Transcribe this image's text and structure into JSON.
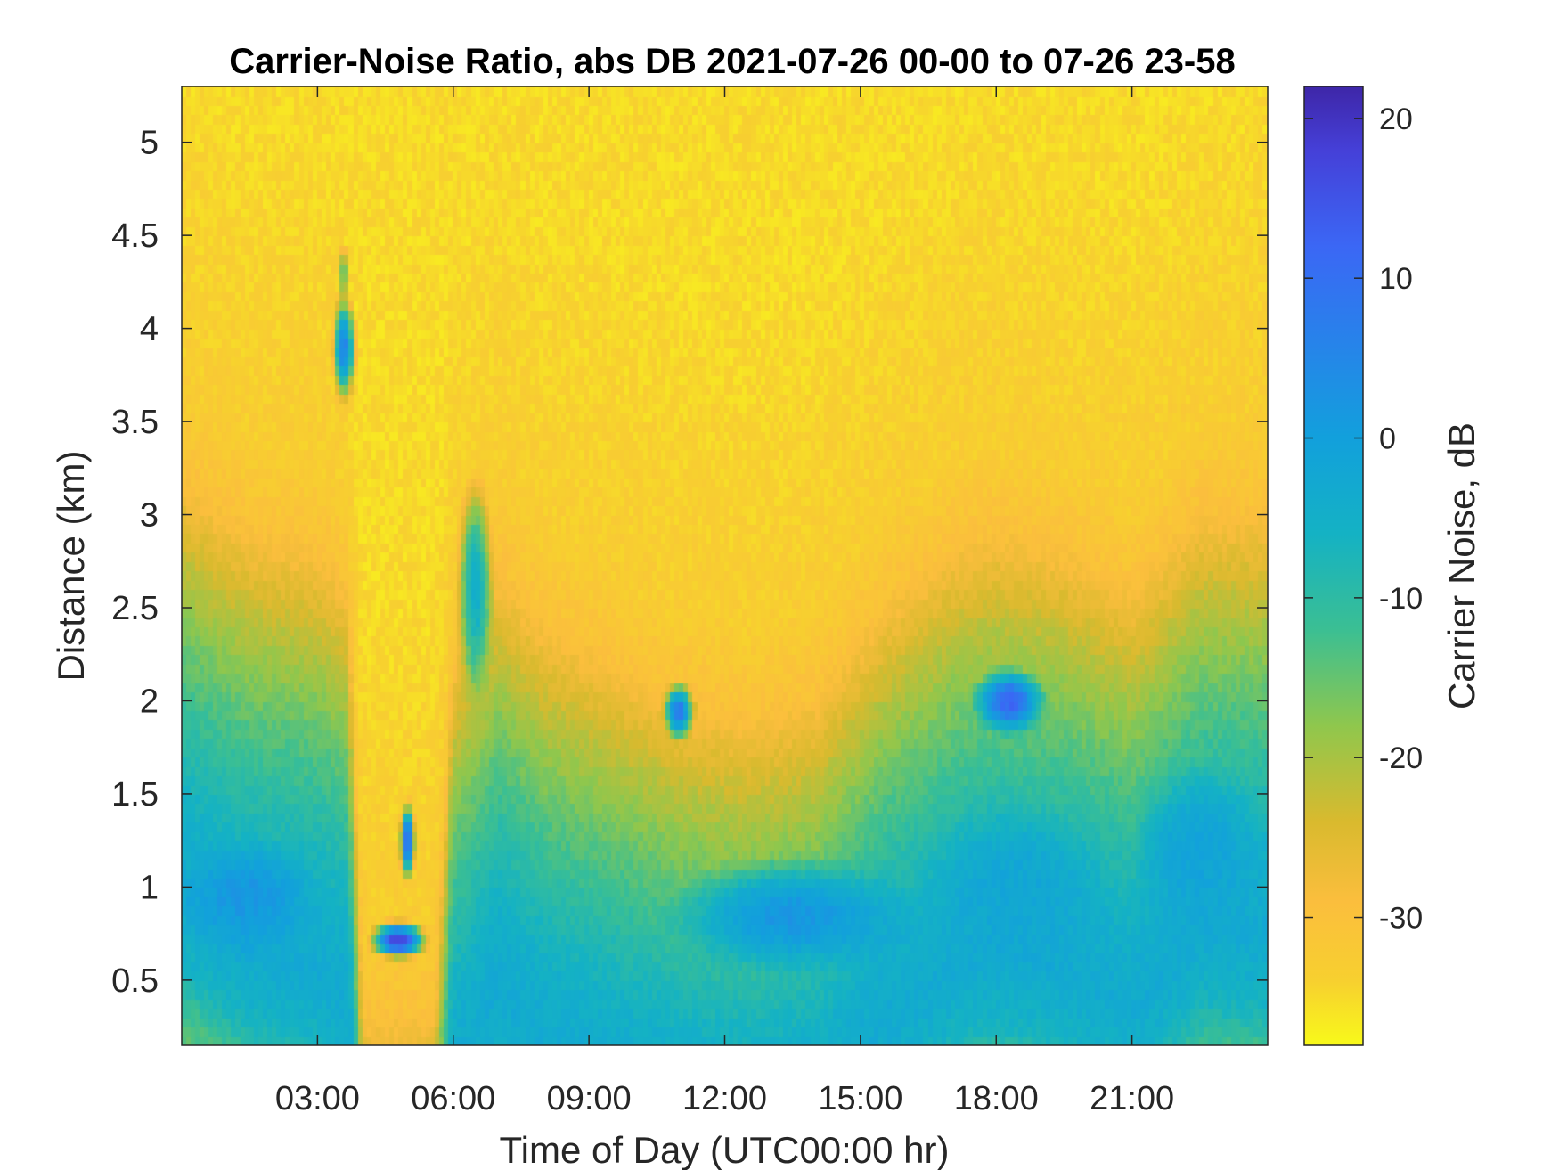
{
  "chart_data": {
    "type": "heatmap",
    "title": "Carrier-Noise Ratio, abs DB 2021-07-26 00-00 to 07-26 23-58",
    "xlabel": "Time of Day (UTC00:00 hr)",
    "ylabel": "Distance (km)",
    "colorbar_label": "Carrier Noise, dB",
    "colormap": "parula-reversed",
    "xlim": [
      0,
      24
    ],
    "ylim": [
      0.15,
      5.3
    ],
    "x_ticks": [
      3,
      6,
      9,
      12,
      15,
      18,
      21
    ],
    "x_tick_labels": [
      "03:00",
      "06:00",
      "09:00",
      "12:00",
      "15:00",
      "18:00",
      "21:00"
    ],
    "y_ticks": [
      0.5,
      1,
      1.5,
      2,
      2.5,
      3,
      3.5,
      4,
      4.5,
      5
    ],
    "y_tick_labels": [
      "0.5",
      "1",
      "1.5",
      "2",
      "2.5",
      "3",
      "3.5",
      "4",
      "4.5",
      "5"
    ],
    "clim": [
      -38,
      22
    ],
    "colorbar_ticks": [
      20,
      10,
      0,
      -10,
      -20,
      -30
    ],
    "colorbar_tick_labels": [
      "20",
      "10",
      "0",
      "-10",
      "-20",
      "-30"
    ],
    "colormap_stops": [
      {
        "value": -38,
        "color": "#f8f91a"
      },
      {
        "value": -34,
        "color": "#f7d02f"
      },
      {
        "value": -29,
        "color": "#fbbe3d"
      },
      {
        "value": -24,
        "color": "#d9ba2e"
      },
      {
        "value": -18,
        "color": "#8fc74d"
      },
      {
        "value": -12,
        "color": "#3bbf93"
      },
      {
        "value": -6,
        "color": "#14b2c4"
      },
      {
        "value": 0,
        "color": "#12a0dc"
      },
      {
        "value": 6,
        "color": "#2783ea"
      },
      {
        "value": 12,
        "color": "#3b67f5"
      },
      {
        "value": 18,
        "color": "#4540d8"
      },
      {
        "value": 22,
        "color": "#3e26a8"
      }
    ],
    "grid": false,
    "time_step_hr": 0.1,
    "distance_step_km": 0.05,
    "baseline_profile": [
      {
        "distance_km": 0.15,
        "cnr_db": -14
      },
      {
        "distance_km": 0.3,
        "cnr_db": -12
      },
      {
        "distance_km": 0.55,
        "cnr_db": -6
      },
      {
        "distance_km": 0.9,
        "cnr_db": -3
      },
      {
        "distance_km": 1.3,
        "cnr_db": -5
      },
      {
        "distance_km": 1.7,
        "cnr_db": -9
      },
      {
        "distance_km": 2.2,
        "cnr_db": -15
      },
      {
        "distance_km": 2.7,
        "cnr_db": -22
      },
      {
        "distance_km": 3.2,
        "cnr_db": -30
      },
      {
        "distance_km": 3.6,
        "cnr_db": -33
      },
      {
        "distance_km": 5.3,
        "cnr_db": -35
      }
    ],
    "boundary_layer_top": [
      {
        "time_hr": 0.0,
        "distance_km": 3.2
      },
      {
        "time_hr": 1.5,
        "distance_km": 2.9
      },
      {
        "time_hr": 3.0,
        "distance_km": 2.8
      },
      {
        "time_hr": 3.7,
        "distance_km": 2.6
      },
      {
        "time_hr": 4.0,
        "distance_km": 0.3
      },
      {
        "time_hr": 5.6,
        "distance_km": 0.3
      },
      {
        "time_hr": 6.0,
        "distance_km": 2.2
      },
      {
        "time_hr": 7.0,
        "distance_km": 2.7
      },
      {
        "time_hr": 8.0,
        "distance_km": 2.4
      },
      {
        "time_hr": 9.5,
        "distance_km": 2.2
      },
      {
        "time_hr": 11.0,
        "distance_km": 2.0
      },
      {
        "time_hr": 12.5,
        "distance_km": 1.9
      },
      {
        "time_hr": 14.0,
        "distance_km": 2.0
      },
      {
        "time_hr": 15.5,
        "distance_km": 2.5
      },
      {
        "time_hr": 17.0,
        "distance_km": 2.8
      },
      {
        "time_hr": 18.0,
        "distance_km": 2.9
      },
      {
        "time_hr": 19.5,
        "distance_km": 2.8
      },
      {
        "time_hr": 21.0,
        "distance_km": 2.6
      },
      {
        "time_hr": 22.5,
        "distance_km": 3.0
      },
      {
        "time_hr": 24.0,
        "distance_km": 3.0
      }
    ],
    "features": [
      {
        "name": "cloud",
        "time_hr": 3.6,
        "distance_km": 3.9,
        "time_half_width_hr": 0.3,
        "distance_half_width_km": 0.35,
        "cnr_db": 6
      },
      {
        "name": "cloud",
        "time_hr": 3.6,
        "distance_km": 4.3,
        "time_half_width_hr": 0.1,
        "distance_half_width_km": 0.2,
        "cnr_db": -6
      },
      {
        "name": "cloud",
        "time_hr": 4.8,
        "distance_km": 0.72,
        "time_half_width_hr": 0.75,
        "distance_half_width_km": 0.12,
        "cnr_db": 18
      },
      {
        "name": "cloud",
        "time_hr": 5.0,
        "distance_km": 1.25,
        "time_half_width_hr": 0.2,
        "distance_half_width_km": 0.25,
        "cnr_db": 12
      },
      {
        "name": "cloud",
        "time_hr": 6.5,
        "distance_km": 2.6,
        "time_half_width_hr": 0.45,
        "distance_half_width_km": 0.7,
        "cnr_db": -4
      },
      {
        "name": "cloud",
        "time_hr": 11.0,
        "distance_km": 1.95,
        "time_half_width_hr": 0.4,
        "distance_half_width_km": 0.18,
        "cnr_db": 8
      },
      {
        "name": "cloud",
        "time_hr": 18.3,
        "distance_km": 2.0,
        "time_half_width_hr": 0.9,
        "distance_half_width_km": 0.2,
        "cnr_db": 12
      },
      {
        "name": "enhanced-layer",
        "time_hr": 1.5,
        "distance_km": 0.95,
        "time_half_width_hr": 1.6,
        "distance_half_width_km": 0.35,
        "cnr_db": 2
      },
      {
        "name": "enhanced-layer",
        "time_hr": 13.5,
        "distance_km": 0.85,
        "time_half_width_hr": 3.0,
        "distance_half_width_km": 0.35,
        "cnr_db": 2
      },
      {
        "name": "enhanced-layer",
        "time_hr": 18.5,
        "distance_km": 1.0,
        "time_half_width_hr": 2.2,
        "distance_half_width_km": 0.5,
        "cnr_db": -2
      },
      {
        "name": "enhanced-layer",
        "time_hr": 22.5,
        "distance_km": 1.2,
        "time_half_width_hr": 1.6,
        "distance_half_width_km": 0.5,
        "cnr_db": -1
      }
    ]
  }
}
